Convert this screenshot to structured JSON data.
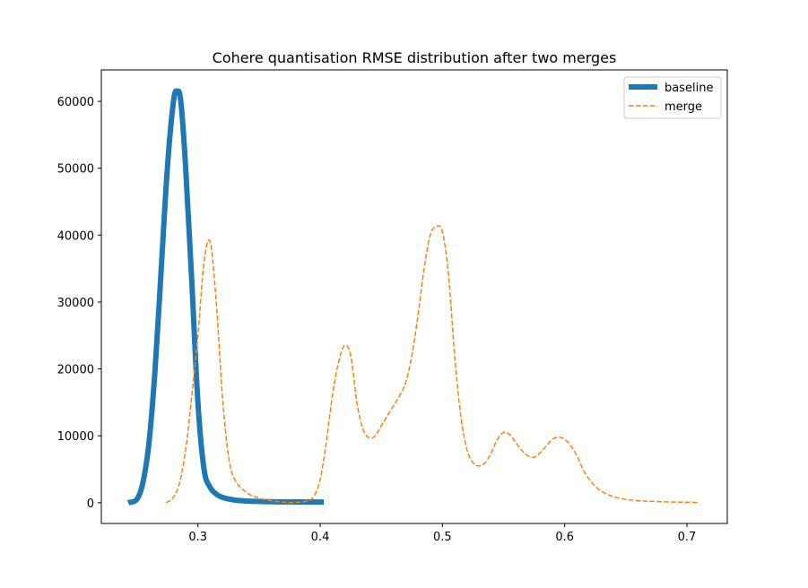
{
  "chart_data": {
    "type": "line",
    "title": "Cohere quantisation RMSE distribution after two merges",
    "xlabel": "",
    "ylabel": "",
    "xlim": [
      0.221,
      0.733
    ],
    "ylim": [
      -3100,
      64700
    ],
    "x_ticks": [
      0.3,
      0.4,
      0.5,
      0.6,
      0.7
    ],
    "x_tick_labels": [
      "0.3",
      "0.4",
      "0.5",
      "0.6",
      "0.7"
    ],
    "y_ticks": [
      0,
      10000,
      20000,
      30000,
      40000,
      50000,
      60000
    ],
    "y_tick_labels": [
      "0",
      "10000",
      "20000",
      "30000",
      "40000",
      "50000",
      "60000"
    ],
    "grid": false,
    "legend_position": "top-right",
    "series": [
      {
        "name": "baseline",
        "color": "#1f77b4",
        "style": "solid",
        "x": [
          0.243,
          0.25,
          0.255,
          0.26,
          0.265,
          0.27,
          0.275,
          0.28,
          0.283,
          0.286,
          0.29,
          0.295,
          0.3,
          0.305,
          0.31,
          0.315,
          0.32,
          0.33,
          0.34,
          0.36,
          0.38,
          0.403
        ],
        "y": [
          0,
          500,
          3000,
          9000,
          20000,
          35000,
          50000,
          60000,
          61500,
          60000,
          50000,
          33000,
          15000,
          5000,
          2300,
          1300,
          800,
          400,
          250,
          150,
          120,
          100
        ]
      },
      {
        "name": "merge",
        "color": "#ff7f0e",
        "style": "dashed",
        "x": [
          0.274,
          0.28,
          0.285,
          0.29,
          0.295,
          0.3,
          0.305,
          0.31,
          0.315,
          0.32,
          0.325,
          0.33,
          0.34,
          0.35,
          0.36,
          0.37,
          0.38,
          0.39,
          0.395,
          0.4,
          0.405,
          0.41,
          0.415,
          0.42,
          0.425,
          0.43,
          0.435,
          0.44,
          0.445,
          0.45,
          0.455,
          0.46,
          0.465,
          0.47,
          0.475,
          0.48,
          0.485,
          0.49,
          0.495,
          0.5,
          0.505,
          0.51,
          0.515,
          0.52,
          0.525,
          0.53,
          0.535,
          0.54,
          0.545,
          0.55,
          0.555,
          0.56,
          0.565,
          0.57,
          0.575,
          0.58,
          0.585,
          0.59,
          0.595,
          0.6,
          0.605,
          0.61,
          0.615,
          0.62,
          0.625,
          0.63,
          0.64,
          0.65,
          0.66,
          0.67,
          0.69,
          0.71
        ],
        "y": [
          0,
          800,
          3000,
          8000,
          16000,
          25000,
          36000,
          39000,
          30000,
          16000,
          7000,
          3500,
          1500,
          700,
          300,
          100,
          50,
          300,
          1000,
          3500,
          9000,
          16000,
          21000,
          23500,
          22000,
          15000,
          11000,
          9700,
          10000,
          11500,
          13000,
          14500,
          16000,
          18000,
          22000,
          28000,
          35000,
          40000,
          41300,
          40500,
          34000,
          22000,
          13000,
          8000,
          6000,
          5500,
          6000,
          7500,
          9500,
          10500,
          10200,
          9000,
          7800,
          7000,
          6800,
          7500,
          8500,
          9500,
          9800,
          9500,
          8500,
          7000,
          5000,
          3500,
          2500,
          1700,
          900,
          500,
          300,
          200,
          100,
          50
        ]
      }
    ]
  }
}
